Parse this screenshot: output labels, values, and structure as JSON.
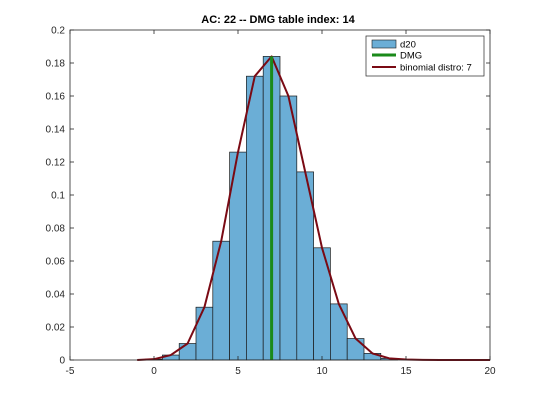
{
  "chart_data": {
    "type": "bar",
    "title": "AC: 22 -- DMG table index: 14",
    "xlabel": "",
    "ylabel": "",
    "xlim": [
      -5,
      20
    ],
    "ylim": [
      0,
      0.2
    ],
    "xticks": [
      -5,
      0,
      5,
      10,
      15,
      20
    ],
    "xtick_labels": [
      "-5",
      "0",
      "5",
      "10",
      "15",
      "20"
    ],
    "yticks": [
      0,
      0.02,
      0.04,
      0.06,
      0.08,
      0.1,
      0.12,
      0.14,
      0.16,
      0.18,
      0.2
    ],
    "ytick_labels": [
      "0",
      "0.02",
      "0.04",
      "0.06",
      "0.08",
      "0.1",
      "0.12",
      "0.14",
      "0.16",
      "0.18",
      "0.2"
    ],
    "grid": false,
    "legend_position": "top-right",
    "histogram": {
      "name": "d20",
      "bin_width": 1,
      "bin_centers": [
        0,
        1,
        2,
        3,
        4,
        5,
        6,
        7,
        8,
        9,
        10,
        11,
        12,
        13,
        14
      ],
      "values": [
        0.0005,
        0.003,
        0.01,
        0.032,
        0.072,
        0.126,
        0.172,
        0.184,
        0.16,
        0.114,
        0.068,
        0.034,
        0.013,
        0.004,
        0.001
      ]
    },
    "vertical_line": {
      "name": "DMG",
      "x": 7,
      "y_range": [
        0,
        0.184
      ]
    },
    "curve": {
      "name": "binomial distro: 7",
      "x": [
        -1,
        0,
        1,
        2,
        3,
        4,
        5,
        6,
        7,
        8,
        9,
        10,
        11,
        12,
        13,
        14,
        15,
        16,
        17,
        18,
        19,
        20
      ],
      "y": [
        0,
        0.0005,
        0.003,
        0.01,
        0.032,
        0.072,
        0.126,
        0.172,
        0.184,
        0.16,
        0.114,
        0.068,
        0.034,
        0.013,
        0.004,
        0.001,
        0.0003,
        0.0001,
        0,
        0,
        0,
        0
      ]
    },
    "colors": {
      "bar_fill": "#6baed6",
      "bar_edge": "#1a1a1a",
      "dmg_line": "#1a8a1a",
      "curve": "#7a0a14",
      "axes": "#262626"
    }
  }
}
